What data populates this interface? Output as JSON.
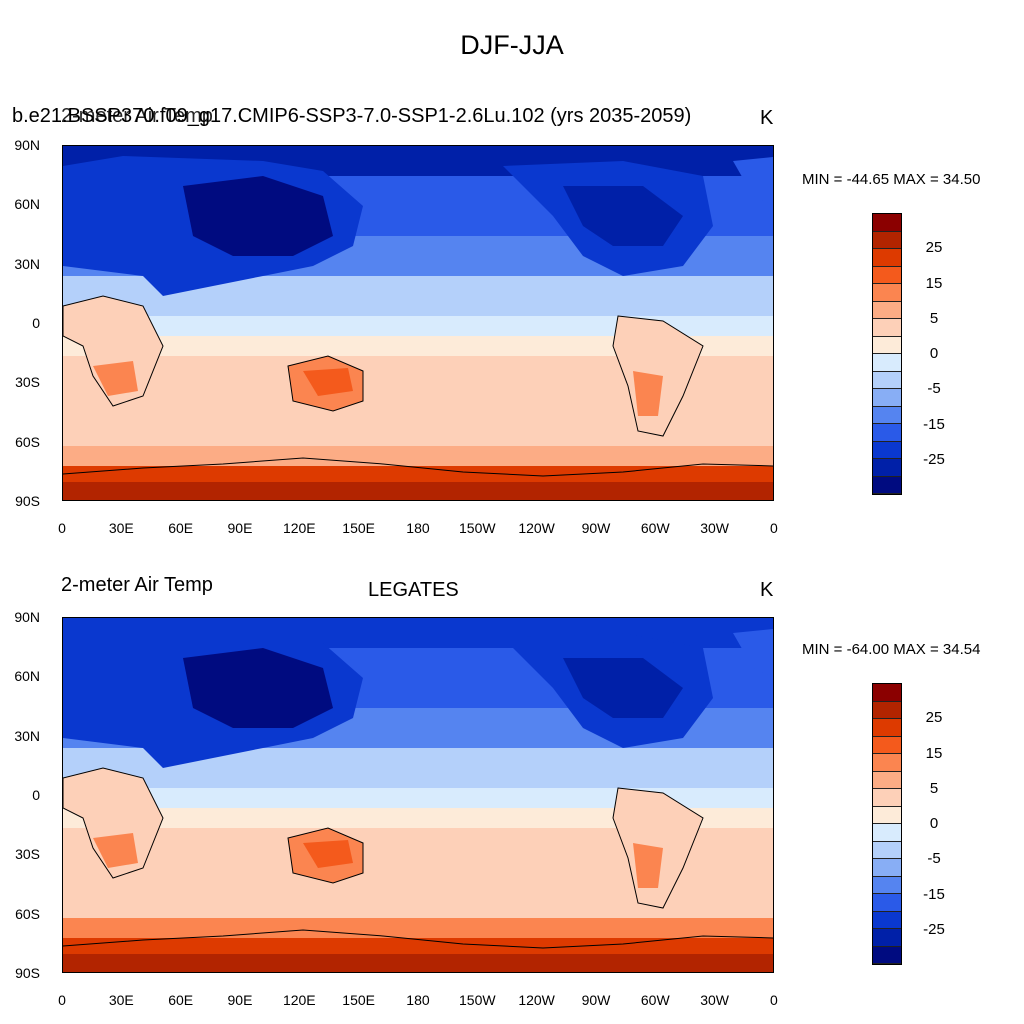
{
  "main_title": "DJF-JJA",
  "colorbar": {
    "colors": [
      "#8b0000",
      "#b22400",
      "#dd3a00",
      "#f45a1c",
      "#fb8550",
      "#fcac85",
      "#fdd0b8",
      "#fdebd9",
      "#d8ebfd",
      "#b4d0fa",
      "#88aef5",
      "#5584f0",
      "#2a5ae8",
      "#0a38cf",
      "#0020a8",
      "#000b80"
    ],
    "labels": [
      "25",
      "15",
      "5",
      "0",
      "-5",
      "-15",
      "-25"
    ]
  },
  "axes": {
    "lat_labels": [
      "90N",
      "60N",
      "30N",
      "0",
      "30S",
      "60S",
      "90S"
    ],
    "lon_labels": [
      "0",
      "30E",
      "60E",
      "90E",
      "120E",
      "150E",
      "180",
      "150W",
      "120W",
      "90W",
      "60W",
      "30W",
      "0"
    ]
  },
  "panels": [
    {
      "left_title": "b.e21.BSSP370.f09_g17.CMIP6-SSP3-7.0-SSP1-2.6Lu.102 (yrs 2035-2059)",
      "left_overlay": "2-meter Air Temp",
      "center_title": "",
      "unit": "K",
      "minmax": "MIN = -44.65 MAX =  34.50"
    },
    {
      "left_title": "2-meter Air Temp",
      "left_overlay": "",
      "center_title": "LEGATES",
      "unit": "K",
      "minmax": "MIN = -64.00 MAX =  34.54"
    }
  ]
}
